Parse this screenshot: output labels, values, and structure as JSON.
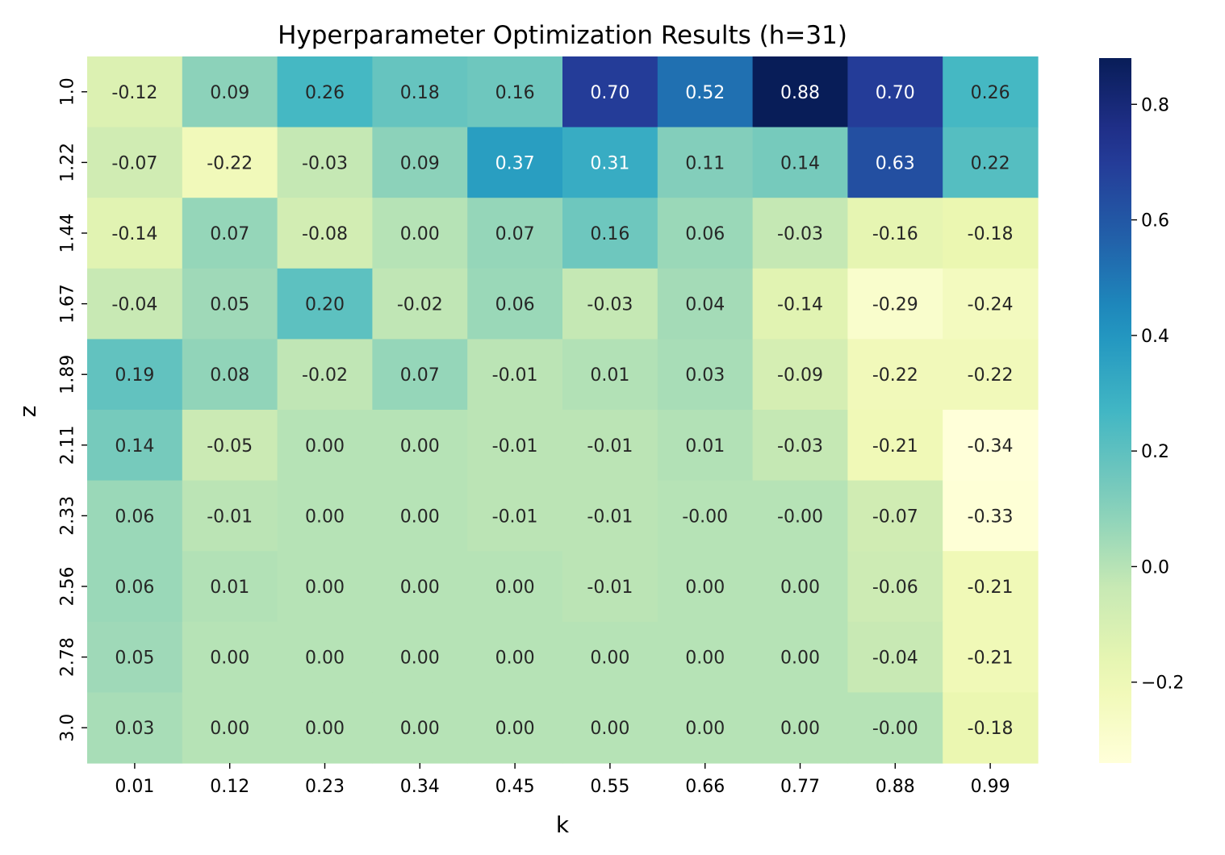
{
  "chart_data": {
    "type": "heatmap",
    "title": "Hyperparameter Optimization Results (h=31)",
    "xlabel": "k",
    "ylabel": "z",
    "x_categories": [
      "0.01",
      "0.12",
      "0.23",
      "0.34",
      "0.45",
      "0.55",
      "0.66",
      "0.77",
      "0.88",
      "0.99"
    ],
    "y_categories": [
      "1.0",
      "1.22",
      "1.44",
      "1.67",
      "1.89",
      "2.11",
      "2.33",
      "2.56",
      "2.78",
      "3.0"
    ],
    "values": [
      [
        -0.12,
        0.09,
        0.26,
        0.18,
        0.16,
        0.7,
        0.52,
        0.88,
        0.7,
        0.26
      ],
      [
        -0.07,
        -0.22,
        -0.03,
        0.09,
        0.37,
        0.31,
        0.11,
        0.14,
        0.63,
        0.22
      ],
      [
        -0.14,
        0.07,
        -0.08,
        0.0,
        0.07,
        0.16,
        0.06,
        -0.03,
        -0.16,
        -0.18
      ],
      [
        -0.04,
        0.05,
        0.2,
        -0.02,
        0.06,
        -0.03,
        0.04,
        -0.14,
        -0.29,
        -0.24
      ],
      [
        0.19,
        0.08,
        -0.02,
        0.07,
        -0.01,
        0.01,
        0.03,
        -0.09,
        -0.22,
        -0.22
      ],
      [
        0.14,
        -0.05,
        0.0,
        0.0,
        -0.01,
        -0.01,
        0.01,
        -0.03,
        -0.21,
        -0.34
      ],
      [
        0.06,
        -0.01,
        0.0,
        0.0,
        -0.01,
        -0.01,
        -0.0,
        -0.0,
        -0.07,
        -0.33
      ],
      [
        0.06,
        0.01,
        0.0,
        0.0,
        0.0,
        -0.01,
        0.0,
        0.0,
        -0.06,
        -0.21
      ],
      [
        0.05,
        0.0,
        0.0,
        0.0,
        0.0,
        0.0,
        0.0,
        0.0,
        -0.04,
        -0.21
      ],
      [
        0.03,
        0.0,
        0.0,
        0.0,
        0.0,
        0.0,
        0.0,
        0.0,
        -0.0,
        -0.18
      ]
    ],
    "annotations": [
      [
        "-0.12",
        "0.09",
        "0.26",
        "0.18",
        "0.16",
        "0.70",
        "0.52",
        "0.88",
        "0.70",
        "0.26"
      ],
      [
        "-0.07",
        "-0.22",
        "-0.03",
        "0.09",
        "0.37",
        "0.31",
        "0.11",
        "0.14",
        "0.63",
        "0.22"
      ],
      [
        "-0.14",
        "0.07",
        "-0.08",
        "0.00",
        "0.07",
        "0.16",
        "0.06",
        "-0.03",
        "-0.16",
        "-0.18"
      ],
      [
        "-0.04",
        "0.05",
        "0.20",
        "-0.02",
        "0.06",
        "-0.03",
        "0.04",
        "-0.14",
        "-0.29",
        "-0.24"
      ],
      [
        "0.19",
        "0.08",
        "-0.02",
        "0.07",
        "-0.01",
        "0.01",
        "0.03",
        "-0.09",
        "-0.22",
        "-0.22"
      ],
      [
        "0.14",
        "-0.05",
        "0.00",
        "0.00",
        "-0.01",
        "-0.01",
        "0.01",
        "-0.03",
        "-0.21",
        "-0.34"
      ],
      [
        "0.06",
        "-0.01",
        "0.00",
        "0.00",
        "-0.01",
        "-0.01",
        "-0.00",
        "-0.00",
        "-0.07",
        "-0.33"
      ],
      [
        "0.06",
        "0.01",
        "0.00",
        "0.00",
        "0.00",
        "-0.01",
        "0.00",
        "0.00",
        "-0.06",
        "-0.21"
      ],
      [
        "0.05",
        "0.00",
        "0.00",
        "0.00",
        "0.00",
        "0.00",
        "0.00",
        "0.00",
        "-0.04",
        "-0.21"
      ],
      [
        "0.03",
        "0.00",
        "0.00",
        "0.00",
        "0.00",
        "0.00",
        "0.00",
        "0.00",
        "-0.00",
        "-0.18"
      ]
    ],
    "colormap": "YlGnBu",
    "color_range": [
      -0.34,
      0.88
    ],
    "colorbar_ticks": [
      -0.2,
      0.0,
      0.2,
      0.4,
      0.6,
      0.8
    ],
    "colorbar_tick_labels": [
      "−0.2",
      "0.0",
      "0.2",
      "0.4",
      "0.6",
      "0.8"
    ],
    "colorbar_position": "right",
    "grid": false
  }
}
